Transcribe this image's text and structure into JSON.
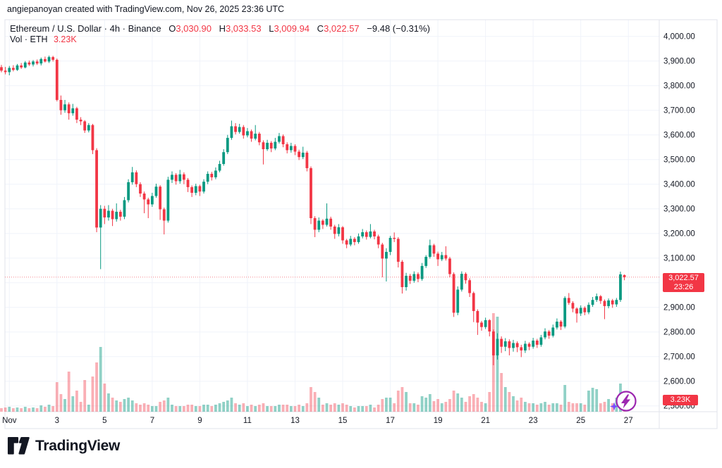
{
  "attribution": "angiepanoyan created with TradingView.com, Nov 26, 2025 23:36 UTC",
  "footer": {
    "brand": "TradingView"
  },
  "legend": {
    "symbol_line": "Ethereum / U.S. Dollar · 4h · Binance",
    "ohlc": {
      "o_k": "O",
      "o_v": "3,030.90",
      "h_k": "H",
      "h_v": "3,033.53",
      "l_k": "L",
      "l_v": "3,009.94",
      "c_k": "C",
      "c_v": "3,022.57"
    },
    "change": "−9.48 (−0.31%)",
    "vol_label": "Vol · ETH",
    "vol_value": "3.23K"
  },
  "badges": {
    "price": "3,022.57",
    "countdown": "23:26",
    "volume": "3.23K"
  },
  "chart_data": {
    "type": "candlestick",
    "symbol": "Ethereum / U.S. Dollar",
    "interval": "4h",
    "exchange": "Binance",
    "current_ohlc": {
      "open": 3030.9,
      "high": 3033.53,
      "low": 3009.94,
      "close": 3022.57
    },
    "change": "−9.48 (−0.31%)",
    "current_volume": "3.23K",
    "last_price": 3022.57,
    "countdown": "23:26",
    "grid": true,
    "price_axis": {
      "min": 2500,
      "max": 4000,
      "step": 100,
      "labels": [
        {
          "p": 4000,
          "t": "4,000.00"
        },
        {
          "p": 3900,
          "t": "3,900.00"
        },
        {
          "p": 3800,
          "t": "3,800.00"
        },
        {
          "p": 3700,
          "t": "3,700.00"
        },
        {
          "p": 3600,
          "t": "3,600.00"
        },
        {
          "p": 3500,
          "t": "3,500.00"
        },
        {
          "p": 3400,
          "t": "3,400.00"
        },
        {
          "p": 3300,
          "t": "3,300.00"
        },
        {
          "p": 3200,
          "t": "3,200.00"
        },
        {
          "p": 3100,
          "t": "3,100.00"
        },
        {
          "p": 2900,
          "t": "2,900.00"
        },
        {
          "p": 2800,
          "t": "2,800.00"
        },
        {
          "p": 2700,
          "t": "2,700.00"
        },
        {
          "p": 2600,
          "t": "2,600.00"
        },
        {
          "p": 2500,
          "t": "2,500.00"
        }
      ]
    },
    "time_axis": {
      "ticks": [
        {
          "day": 1,
          "t": "Nov"
        },
        {
          "day": 3,
          "t": "3"
        },
        {
          "day": 5,
          "t": "5"
        },
        {
          "day": 7,
          "t": "7"
        },
        {
          "day": 9,
          "t": "9"
        },
        {
          "day": 11,
          "t": "11"
        },
        {
          "day": 13,
          "t": "13"
        },
        {
          "day": 15,
          "t": "15"
        },
        {
          "day": 17,
          "t": "17"
        },
        {
          "day": 19,
          "t": "19"
        },
        {
          "day": 21,
          "t": "21"
        },
        {
          "day": 23,
          "t": "23"
        },
        {
          "day": 25,
          "t": "25"
        },
        {
          "day": 27,
          "t": "27"
        }
      ]
    },
    "colors": {
      "up": "#089981",
      "down": "#f23645",
      "vol_up": "rgba(8,153,129,0.45)",
      "vol_down": "rgba(242,54,69,0.40)",
      "last_line": "#f23645",
      "grid": "#f0f3fa",
      "frame": "#e0e3eb",
      "axis_text": "#131722",
      "badge": "#f23645"
    },
    "volume_unit": "relative",
    "candles": [
      [
        3875,
        3884,
        3854,
        3861,
        5
      ],
      [
        3861,
        3876,
        3846,
        3855,
        6
      ],
      [
        3855,
        3880,
        3842,
        3872,
        7
      ],
      [
        3872,
        3883,
        3858,
        3864,
        5
      ],
      [
        3864,
        3888,
        3860,
        3882,
        6
      ],
      [
        3882,
        3892,
        3868,
        3874,
        5
      ],
      [
        3874,
        3900,
        3870,
        3894,
        7
      ],
      [
        3894,
        3902,
        3880,
        3886,
        5
      ],
      [
        3886,
        3904,
        3878,
        3898,
        6
      ],
      [
        3898,
        3906,
        3884,
        3890,
        5
      ],
      [
        3890,
        3914,
        3882,
        3908,
        9
      ],
      [
        3908,
        3918,
        3894,
        3898,
        7
      ],
      [
        3898,
        3922,
        3892,
        3916,
        10
      ],
      [
        3916,
        3921,
        3898,
        3905,
        8
      ],
      [
        3905,
        3910,
        3736,
        3742,
        42
      ],
      [
        3742,
        3760,
        3682,
        3700,
        25
      ],
      [
        3700,
        3742,
        3690,
        3724,
        18
      ],
      [
        3724,
        3732,
        3662,
        3688,
        57
      ],
      [
        3688,
        3726,
        3678,
        3708,
        22
      ],
      [
        3708,
        3714,
        3648,
        3662,
        30
      ],
      [
        3662,
        3672,
        3640,
        3655,
        14
      ],
      [
        3655,
        3660,
        3608,
        3618,
        45
      ],
      [
        3618,
        3648,
        3610,
        3640,
        10
      ],
      [
        3640,
        3645,
        3522,
        3538,
        50
      ],
      [
        3538,
        3546,
        3205,
        3224,
        70
      ],
      [
        3224,
        3315,
        3055,
        3300,
        92
      ],
      [
        3300,
        3312,
        3238,
        3265,
        40
      ],
      [
        3265,
        3315,
        3252,
        3292,
        26
      ],
      [
        3292,
        3300,
        3230,
        3258,
        20
      ],
      [
        3258,
        3322,
        3248,
        3288,
        16
      ],
      [
        3288,
        3296,
        3252,
        3268,
        14
      ],
      [
        3268,
        3348,
        3258,
        3335,
        18
      ],
      [
        3335,
        3420,
        3326,
        3408,
        20
      ],
      [
        3408,
        3470,
        3398,
        3448,
        16
      ],
      [
        3448,
        3456,
        3388,
        3400,
        12
      ],
      [
        3400,
        3408,
        3348,
        3362,
        10
      ],
      [
        3362,
        3370,
        3282,
        3338,
        12
      ],
      [
        3338,
        3345,
        3262,
        3318,
        10
      ],
      [
        3318,
        3365,
        3308,
        3352,
        8
      ],
      [
        3352,
        3402,
        3345,
        3390,
        8
      ],
      [
        3390,
        3396,
        3255,
        3298,
        14
      ],
      [
        3298,
        3305,
        3196,
        3252,
        16
      ],
      [
        3252,
        3430,
        3244,
        3418,
        20
      ],
      [
        3418,
        3452,
        3405,
        3438,
        10
      ],
      [
        3438,
        3445,
        3398,
        3412,
        8
      ],
      [
        3412,
        3458,
        3402,
        3440,
        8
      ],
      [
        3440,
        3448,
        3400,
        3418,
        8
      ],
      [
        3418,
        3425,
        3368,
        3388,
        10
      ],
      [
        3388,
        3395,
        3348,
        3365,
        10
      ],
      [
        3365,
        3402,
        3355,
        3392,
        8
      ],
      [
        3392,
        3398,
        3352,
        3370,
        8
      ],
      [
        3370,
        3420,
        3362,
        3410,
        10
      ],
      [
        3410,
        3452,
        3400,
        3442,
        10
      ],
      [
        3442,
        3450,
        3415,
        3428,
        8
      ],
      [
        3428,
        3468,
        3420,
        3455,
        10
      ],
      [
        3455,
        3495,
        3448,
        3482,
        12
      ],
      [
        3482,
        3542,
        3475,
        3530,
        14
      ],
      [
        3530,
        3600,
        3522,
        3588,
        16
      ],
      [
        3588,
        3658,
        3580,
        3635,
        20
      ],
      [
        3635,
        3648,
        3602,
        3612,
        12
      ],
      [
        3612,
        3645,
        3605,
        3632,
        10
      ],
      [
        3632,
        3640,
        3585,
        3598,
        12
      ],
      [
        3598,
        3628,
        3590,
        3615,
        8
      ],
      [
        3615,
        3622,
        3572,
        3585,
        10
      ],
      [
        3585,
        3640,
        3578,
        3605,
        8
      ],
      [
        3605,
        3612,
        3558,
        3570,
        10
      ],
      [
        3570,
        3578,
        3480,
        3542,
        12
      ],
      [
        3542,
        3580,
        3535,
        3568,
        8
      ],
      [
        3568,
        3575,
        3530,
        3545,
        8
      ],
      [
        3545,
        3588,
        3538,
        3572,
        8
      ],
      [
        3572,
        3608,
        3565,
        3595,
        10
      ],
      [
        3595,
        3602,
        3550,
        3562,
        10
      ],
      [
        3562,
        3570,
        3525,
        3538,
        10
      ],
      [
        3538,
        3568,
        3528,
        3555,
        8
      ],
      [
        3555,
        3562,
        3518,
        3532,
        8
      ],
      [
        3532,
        3540,
        3498,
        3510,
        10
      ],
      [
        3510,
        3552,
        3502,
        3528,
        8
      ],
      [
        3528,
        3535,
        3452,
        3465,
        12
      ],
      [
        3465,
        3472,
        3238,
        3262,
        35
      ],
      [
        3262,
        3270,
        3185,
        3215,
        28
      ],
      [
        3215,
        3265,
        3205,
        3252,
        20
      ],
      [
        3252,
        3258,
        3218,
        3235,
        10
      ],
      [
        3235,
        3322,
        3228,
        3260,
        12
      ],
      [
        3260,
        3268,
        3215,
        3228,
        10
      ],
      [
        3228,
        3235,
        3178,
        3198,
        12
      ],
      [
        3198,
        3238,
        3188,
        3225,
        10
      ],
      [
        3225,
        3230,
        3158,
        3172,
        12
      ],
      [
        3172,
        3178,
        3140,
        3155,
        10
      ],
      [
        3155,
        3190,
        3148,
        3178,
        8
      ],
      [
        3178,
        3185,
        3152,
        3165,
        6
      ],
      [
        3165,
        3200,
        3158,
        3188,
        8
      ],
      [
        3188,
        3218,
        3180,
        3205,
        8
      ],
      [
        3205,
        3212,
        3175,
        3186,
        8
      ],
      [
        3186,
        3238,
        3180,
        3208,
        10
      ],
      [
        3208,
        3215,
        3176,
        3188,
        6
      ],
      [
        3188,
        3195,
        3140,
        3155,
        10
      ],
      [
        3155,
        3162,
        3022,
        3098,
        18
      ],
      [
        3098,
        3140,
        3005,
        3125,
        20
      ],
      [
        3125,
        3190,
        3112,
        3182,
        20
      ],
      [
        3182,
        3204,
        3165,
        3178,
        12
      ],
      [
        3178,
        3185,
        3062,
        3085,
        30
      ],
      [
        3085,
        3092,
        2956,
        2982,
        35
      ],
      [
        2982,
        3040,
        2968,
        3028,
        28
      ],
      [
        3028,
        3036,
        2995,
        3008,
        12
      ],
      [
        3008,
        3046,
        3000,
        3035,
        12
      ],
      [
        3035,
        3042,
        3002,
        3015,
        10
      ],
      [
        3015,
        3080,
        3008,
        3068,
        22
      ],
      [
        3068,
        3112,
        3060,
        3105,
        20
      ],
      [
        3105,
        3175,
        3098,
        3152,
        25
      ],
      [
        3152,
        3158,
        3105,
        3118,
        15
      ],
      [
        3118,
        3126,
        3068,
        3095,
        18
      ],
      [
        3095,
        3125,
        3088,
        3112,
        12
      ],
      [
        3112,
        3148,
        3090,
        3098,
        14
      ],
      [
        3098,
        3105,
        3022,
        3035,
        18
      ],
      [
        3035,
        3042,
        2861,
        2878,
        30
      ],
      [
        2878,
        2985,
        2868,
        2972,
        26
      ],
      [
        2972,
        3046,
        2964,
        3036,
        20
      ],
      [
        3036,
        3042,
        2996,
        3010,
        14
      ],
      [
        3010,
        3018,
        2942,
        2958,
        22
      ],
      [
        2958,
        2964,
        2840,
        2885,
        25
      ],
      [
        2885,
        2892,
        2788,
        2838,
        20
      ],
      [
        2838,
        2845,
        2805,
        2820,
        14
      ],
      [
        2820,
        2858,
        2812,
        2848,
        12
      ],
      [
        2848,
        2852,
        2782,
        2802,
        28
      ],
      [
        2802,
        2810,
        2665,
        2705,
        140
      ],
      [
        2705,
        2795,
        2688,
        2772,
        135
      ],
      [
        2772,
        2782,
        2715,
        2740,
        55
      ],
      [
        2740,
        2775,
        2722,
        2762,
        35
      ],
      [
        2762,
        2770,
        2705,
        2735,
        28
      ],
      [
        2735,
        2768,
        2720,
        2755,
        22
      ],
      [
        2755,
        2762,
        2718,
        2738,
        16
      ],
      [
        2738,
        2748,
        2698,
        2725,
        20
      ],
      [
        2725,
        2764,
        2715,
        2752,
        14
      ],
      [
        2752,
        2758,
        2726,
        2740,
        12
      ],
      [
        2740,
        2776,
        2732,
        2765,
        12
      ],
      [
        2765,
        2772,
        2735,
        2748,
        10
      ],
      [
        2748,
        2788,
        2740,
        2778,
        12
      ],
      [
        2778,
        2815,
        2770,
        2802,
        14
      ],
      [
        2802,
        2808,
        2772,
        2785,
        10
      ],
      [
        2785,
        2830,
        2778,
        2818,
        12
      ],
      [
        2818,
        2855,
        2810,
        2842,
        12
      ],
      [
        2842,
        2848,
        2808,
        2822,
        10
      ],
      [
        2822,
        2945,
        2815,
        2938,
        38
      ],
      [
        2938,
        2958,
        2910,
        2918,
        14
      ],
      [
        2918,
        2925,
        2880,
        2895,
        12
      ],
      [
        2895,
        2900,
        2838,
        2875,
        12
      ],
      [
        2875,
        2908,
        2865,
        2898,
        12
      ],
      [
        2898,
        2904,
        2868,
        2880,
        10
      ],
      [
        2880,
        2920,
        2872,
        2910,
        30
      ],
      [
        2910,
        2942,
        2902,
        2930,
        34
      ],
      [
        2930,
        2956,
        2922,
        2945,
        32
      ],
      [
        2945,
        2950,
        2914,
        2926,
        12
      ],
      [
        2926,
        2932,
        2852,
        2905,
        14
      ],
      [
        2905,
        2936,
        2896,
        2928,
        18
      ],
      [
        2928,
        2934,
        2898,
        2912,
        12
      ],
      [
        2912,
        2938,
        2902,
        2930,
        20
      ],
      [
        2930,
        3045,
        2922,
        3034,
        40
      ],
      [
        3030.9,
        3033.53,
        3009.94,
        3022.57,
        18
      ]
    ]
  }
}
